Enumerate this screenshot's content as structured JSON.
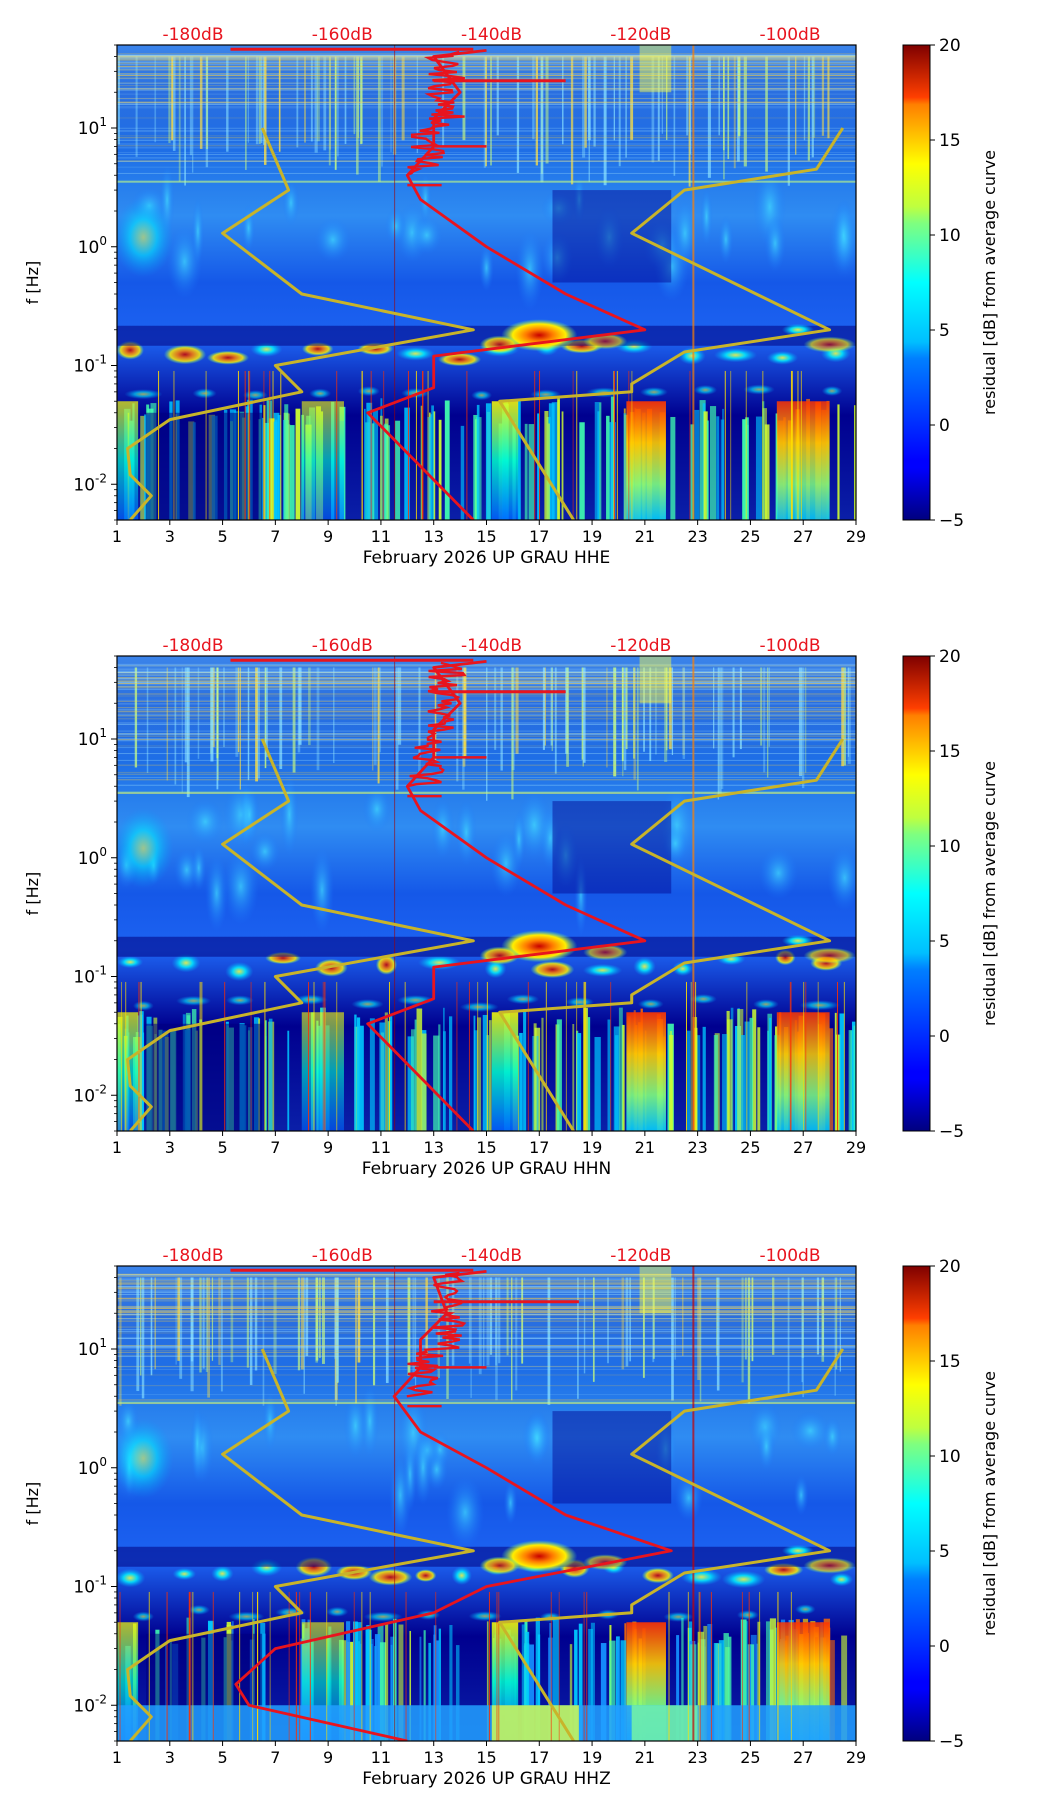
{
  "chart_data": [
    {
      "type": "heatmap",
      "xlabel": "February 2026 UP GRAU  HHE",
      "ylabel": "f [Hz]",
      "x_ticks": [
        "1",
        "3",
        "5",
        "7",
        "9",
        "11",
        "13",
        "15",
        "17",
        "19",
        "21",
        "23",
        "25",
        "27",
        "29"
      ],
      "y_ticks": [
        {
          "exp": "-2",
          "value": 0.01
        },
        {
          "exp": "-1",
          "value": 0.1
        },
        {
          "exp": "0",
          "value": 1
        },
        {
          "exp": "1",
          "value": 10
        }
      ],
      "xlim": [
        1,
        29
      ],
      "ylim_hz": [
        0.005,
        50
      ],
      "top_axis_labels": [
        "-180dB",
        "-160dB",
        "-140dB",
        "-120dB",
        "-100dB"
      ],
      "colorbar": {
        "label": "residual [dB] from average curve",
        "ticks": [
          "20",
          "15",
          "10",
          "5",
          "0",
          "−5"
        ],
        "range": [
          -5,
          20
        ]
      },
      "curves": {
        "noise_models": [
          {
            "name": "low-noise model",
            "color": "#c8b42a",
            "points": [
              [
                1.5,
                0.005
              ],
              [
                2.3,
                0.008
              ],
              [
                1.5,
                0.012
              ],
              [
                1.4,
                0.02
              ],
              [
                3,
                0.035
              ],
              [
                8,
                0.06
              ],
              [
                7,
                0.1
              ],
              [
                14.5,
                0.2
              ],
              [
                8,
                0.4
              ],
              [
                5,
                1.3
              ],
              [
                7.5,
                3
              ],
              [
                6.5,
                10
              ]
            ]
          },
          {
            "name": "high-noise model",
            "color": "#c8b42a",
            "points": [
              [
                18.3,
                0.005
              ],
              [
                15.5,
                0.05
              ],
              [
                20.5,
                0.06
              ],
              [
                20.5,
                0.07
              ],
              [
                22.5,
                0.13
              ],
              [
                28,
                0.2
              ],
              [
                20.5,
                1.3
              ],
              [
                22.5,
                3
              ],
              [
                27.5,
                4.5
              ],
              [
                28.5,
                10
              ]
            ]
          }
        ],
        "mean_psd": {
          "name": "average PSD",
          "color": "#e8141e",
          "points": [
            [
              14.5,
              0.005
            ],
            [
              10.5,
              0.04
            ],
            [
              13,
              0.065
            ],
            [
              13,
              0.12
            ],
            [
              21,
              0.2
            ],
            [
              18,
              0.4
            ],
            [
              15,
              1
            ],
            [
              12.5,
              2.5
            ],
            [
              12,
              4
            ],
            [
              13,
              7
            ],
            [
              13,
              12
            ],
            [
              14,
              20
            ],
            [
              13,
              40
            ],
            [
              15,
              45
            ]
          ]
        },
        "spike": {
          "freq": 25,
          "from_day": 13,
          "to_day": 18
        }
      }
    },
    {
      "type": "heatmap",
      "xlabel": "February 2026 UP GRAU  HHN",
      "ylabel": "f [Hz]",
      "x_ticks": [
        "1",
        "3",
        "5",
        "7",
        "9",
        "11",
        "13",
        "15",
        "17",
        "19",
        "21",
        "23",
        "25",
        "27",
        "29"
      ],
      "y_ticks": [
        {
          "exp": "-2",
          "value": 0.01
        },
        {
          "exp": "-1",
          "value": 0.1
        },
        {
          "exp": "0",
          "value": 1
        },
        {
          "exp": "1",
          "value": 10
        }
      ],
      "xlim": [
        1,
        29
      ],
      "ylim_hz": [
        0.005,
        50
      ],
      "top_axis_labels": [
        "-180dB",
        "-160dB",
        "-140dB",
        "-120dB",
        "-100dB"
      ],
      "colorbar": {
        "label": "residual [dB] from average curve",
        "ticks": [
          "20",
          "15",
          "10",
          "5",
          "0",
          "−5"
        ],
        "range": [
          -5,
          20
        ]
      },
      "curves": {
        "noise_models": [
          {
            "name": "low-noise model",
            "color": "#c8b42a",
            "points": [
              [
                1.5,
                0.005
              ],
              [
                2.3,
                0.008
              ],
              [
                1.5,
                0.012
              ],
              [
                1.4,
                0.02
              ],
              [
                3,
                0.035
              ],
              [
                8,
                0.06
              ],
              [
                7,
                0.1
              ],
              [
                14.5,
                0.2
              ],
              [
                8,
                0.4
              ],
              [
                5,
                1.3
              ],
              [
                7.5,
                3
              ],
              [
                6.5,
                10
              ]
            ]
          },
          {
            "name": "high-noise model",
            "color": "#c8b42a",
            "points": [
              [
                18.3,
                0.005
              ],
              [
                15.5,
                0.05
              ],
              [
                20.5,
                0.06
              ],
              [
                20.5,
                0.07
              ],
              [
                22.5,
                0.13
              ],
              [
                28,
                0.2
              ],
              [
                20.5,
                1.3
              ],
              [
                22.5,
                3
              ],
              [
                27.5,
                4.5
              ],
              [
                28.5,
                10
              ]
            ]
          }
        ],
        "mean_psd": {
          "name": "average PSD",
          "color": "#e8141e",
          "points": [
            [
              14.5,
              0.005
            ],
            [
              10.5,
              0.04
            ],
            [
              13,
              0.065
            ],
            [
              13,
              0.12
            ],
            [
              21,
              0.2
            ],
            [
              18,
              0.4
            ],
            [
              15,
              1
            ],
            [
              12.5,
              2.5
            ],
            [
              12,
              4
            ],
            [
              13,
              7
            ],
            [
              13,
              12
            ],
            [
              14,
              20
            ],
            [
              13,
              40
            ],
            [
              15,
              45
            ]
          ]
        },
        "spike": {
          "freq": 25,
          "from_day": 13,
          "to_day": 18
        }
      }
    },
    {
      "type": "heatmap",
      "xlabel": "February 2026 UP GRAU  HHZ",
      "ylabel": "f [Hz]",
      "x_ticks": [
        "1",
        "3",
        "5",
        "7",
        "9",
        "11",
        "13",
        "15",
        "17",
        "19",
        "21",
        "23",
        "25",
        "27",
        "29"
      ],
      "y_ticks": [
        {
          "exp": "-2",
          "value": 0.01
        },
        {
          "exp": "-1",
          "value": 0.1
        },
        {
          "exp": "0",
          "value": 1
        },
        {
          "exp": "1",
          "value": 10
        }
      ],
      "xlim": [
        1,
        29
      ],
      "ylim_hz": [
        0.005,
        50
      ],
      "top_axis_labels": [
        "-180dB",
        "-160dB",
        "-140dB",
        "-120dB",
        "-100dB"
      ],
      "colorbar": {
        "label": "residual [dB] from average curve",
        "ticks": [
          "20",
          "15",
          "10",
          "5",
          "0",
          "−5"
        ],
        "range": [
          -5,
          20
        ]
      },
      "curves": {
        "noise_models": [
          {
            "name": "low-noise model",
            "color": "#c8b42a",
            "points": [
              [
                1.5,
                0.005
              ],
              [
                2.3,
                0.008
              ],
              [
                1.5,
                0.012
              ],
              [
                1.4,
                0.02
              ],
              [
                3,
                0.035
              ],
              [
                8,
                0.06
              ],
              [
                7,
                0.1
              ],
              [
                14.5,
                0.2
              ],
              [
                8,
                0.4
              ],
              [
                5,
                1.3
              ],
              [
                7.5,
                3
              ],
              [
                6.5,
                10
              ]
            ]
          },
          {
            "name": "high-noise model",
            "color": "#c8b42a",
            "points": [
              [
                18.3,
                0.005
              ],
              [
                15.5,
                0.05
              ],
              [
                20.5,
                0.06
              ],
              [
                20.5,
                0.07
              ],
              [
                22.5,
                0.13
              ],
              [
                28,
                0.2
              ],
              [
                20.5,
                1.3
              ],
              [
                22.5,
                3
              ],
              [
                27.5,
                4.5
              ],
              [
                28.5,
                10
              ]
            ]
          }
        ],
        "mean_psd": {
          "name": "average PSD",
          "color": "#e8141e",
          "points": [
            [
              12,
              0.005
            ],
            [
              6,
              0.01
            ],
            [
              5.5,
              0.015
            ],
            [
              7,
              0.03
            ],
            [
              13,
              0.06
            ],
            [
              15,
              0.1
            ],
            [
              22,
              0.2
            ],
            [
              18,
              0.4
            ],
            [
              15,
              1
            ],
            [
              12.5,
              2
            ],
            [
              11.5,
              4
            ],
            [
              12.5,
              7
            ],
            [
              12.5,
              12
            ],
            [
              13.5,
              20
            ],
            [
              13,
              40
            ],
            [
              15,
              45
            ]
          ]
        },
        "spike": {
          "freq": 25,
          "from_day": 13,
          "to_day": 18.5
        }
      }
    }
  ]
}
